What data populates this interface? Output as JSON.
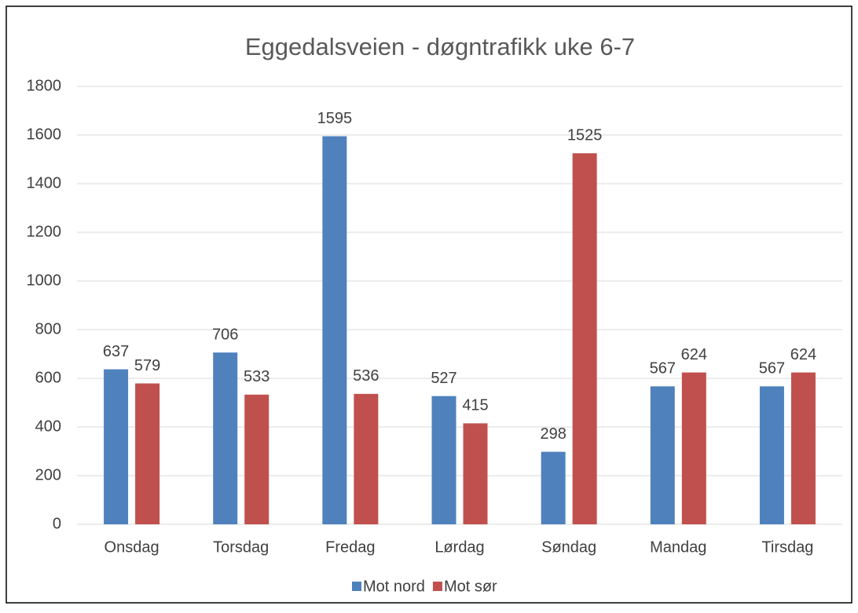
{
  "chart_data": {
    "type": "bar",
    "title": "Eggedalsveien - døgntrafikk uke 6-7",
    "categories": [
      "Onsdag",
      "Torsdag",
      "Fredag",
      "Lørdag",
      "Søndag",
      "Mandag",
      "Tirsdag"
    ],
    "series": [
      {
        "name": "Mot nord",
        "color": "#4f81bd",
        "values": [
          637,
          706,
          1595,
          527,
          298,
          567,
          567
        ]
      },
      {
        "name": "Mot sør",
        "color": "#c0504d",
        "values": [
          579,
          533,
          536,
          415,
          1525,
          624,
          624
        ]
      }
    ],
    "ylim": [
      0,
      1800
    ],
    "yticks": [
      0,
      200,
      400,
      600,
      800,
      1000,
      1200,
      1400,
      1600,
      1800
    ],
    "grid": true,
    "legend": "bottom"
  }
}
